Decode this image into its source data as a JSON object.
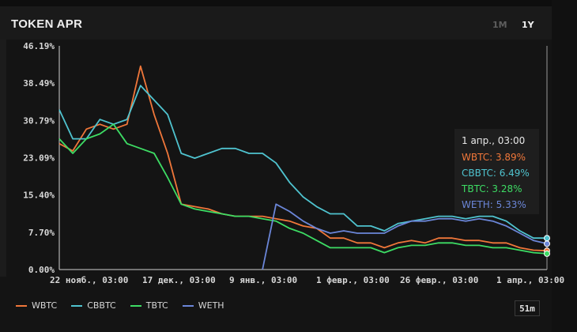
{
  "header": {
    "title": "TOKEN APR",
    "range_1m": "1M",
    "range_1y": "1Y"
  },
  "colors": {
    "WBTC": "#f0773a",
    "CBBTC": "#4fc3cf",
    "TBTC": "#3ddc64",
    "WETH": "#6b86d8"
  },
  "tooltip": {
    "date": "1 апр., 03:00",
    "wbtc": "WBTC: 3.89%",
    "cbbtc": "CBBTC: 6.49%",
    "tbtc": "TBTC: 3.28%",
    "weth": "WETH: 5.33%"
  },
  "interval_label": "51m",
  "chart_data": {
    "type": "line",
    "ylim": [
      0,
      46.19
    ],
    "y_ticks": [
      "46.19%",
      "38.49%",
      "30.79%",
      "23.09%",
      "15.40%",
      "7.70%",
      "0.00%"
    ],
    "x_ticks": [
      "22 нояб., 03:00",
      "17 дек., 03:00",
      "9 янв., 03:00",
      "1 февр., 03:00",
      "26 февр., 03:00",
      "1 апр., 03:00"
    ],
    "x": [
      "22 нояб.",
      "25 нояб.",
      "29 нояб.",
      "3 дек.",
      "7 дек.",
      "11 дек.",
      "14 дек.",
      "17 дек.",
      "20 дек.",
      "23 дек.",
      "27 дек.",
      "30 дек.",
      "2 янв.",
      "6 янв.",
      "9 янв.",
      "12 янв.",
      "15 янв.",
      "18 янв.",
      "22 янв.",
      "25 янв.",
      "28 янв.",
      "1 февр.",
      "4 февр.",
      "8 февр.",
      "11 февр.",
      "15 февр.",
      "18 февр.",
      "22 февр.",
      "26 февр.",
      "2 мар.",
      "6 мар.",
      "10 мар.",
      "14 мар.",
      "18 мар.",
      "22 мар.",
      "26 мар.",
      "1 апр."
    ],
    "series": [
      {
        "name": "WBTC",
        "values": [
          26,
          24.5,
          29,
          30,
          29,
          30,
          42,
          32,
          24,
          13.5,
          13,
          12.5,
          11.5,
          11,
          11,
          11,
          10.5,
          10,
          9,
          8.5,
          6.5,
          6.5,
          5.5,
          5.5,
          4.5,
          5.5,
          6,
          5.5,
          6.5,
          6.5,
          6,
          6,
          5.5,
          5.5,
          4.5,
          4,
          3.89
        ]
      },
      {
        "name": "CBBTC",
        "values": [
          33,
          27,
          27,
          31,
          30,
          31,
          38,
          35,
          32,
          24,
          23,
          24,
          25,
          25,
          24,
          24,
          22,
          18,
          15,
          13,
          11.5,
          11.5,
          9,
          9,
          8,
          9.5,
          10,
          10.5,
          11,
          11,
          10.5,
          11,
          11,
          10,
          8,
          6.5,
          6.49
        ]
      },
      {
        "name": "TBTC",
        "values": [
          27,
          24,
          27,
          28,
          30,
          26,
          25,
          24,
          19,
          13.5,
          12.5,
          12,
          11.5,
          11,
          11,
          10.5,
          10,
          8.5,
          7.5,
          6,
          4.5,
          4.5,
          4.5,
          4.5,
          3.5,
          4.5,
          5,
          5,
          5.5,
          5.5,
          5,
          5,
          4.5,
          4.5,
          4,
          3.5,
          3.28
        ]
      },
      {
        "name": "WETH",
        "values": [
          null,
          null,
          null,
          null,
          null,
          null,
          null,
          null,
          null,
          null,
          null,
          null,
          null,
          null,
          null,
          0,
          13.5,
          12,
          10,
          8.5,
          7.5,
          8,
          7.5,
          7.5,
          7.5,
          9,
          10,
          10,
          10.5,
          10.5,
          10,
          10.5,
          10,
          9,
          7.5,
          6,
          5.33
        ]
      }
    ]
  }
}
